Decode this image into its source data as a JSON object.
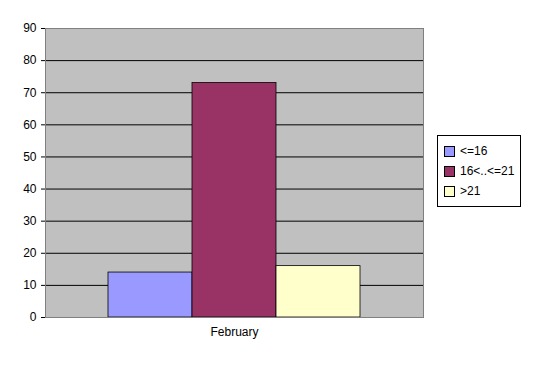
{
  "chart_data": {
    "type": "bar",
    "categories": [
      "February"
    ],
    "series": [
      {
        "name": "<=16",
        "color": "#9999ff",
        "values": [
          14
        ]
      },
      {
        "name": "16<..<=21",
        "color": "#993366",
        "values": [
          73
        ]
      },
      {
        "name": ">21",
        "color": "#ffffcc",
        "values": [
          16
        ]
      }
    ],
    "ylim": [
      0,
      90
    ],
    "yticks": [
      0,
      10,
      20,
      30,
      40,
      50,
      60,
      70,
      80,
      90
    ],
    "grid": true,
    "legend": "right"
  }
}
